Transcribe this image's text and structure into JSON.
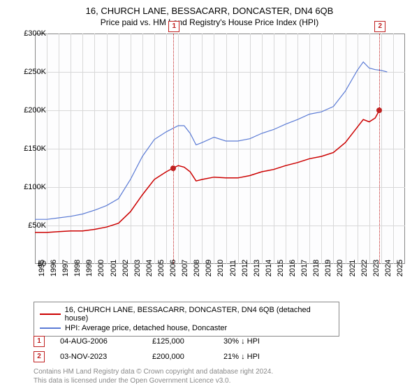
{
  "title": "16, CHURCH LANE, BESSACARR, DONCASTER, DN4 6QB",
  "subtitle": "Price paid vs. HM Land Registry's House Price Index (HPI)",
  "chart": {
    "type": "line",
    "background_color": "#fdfdfe",
    "grid_color": "#d8d8d8",
    "border_color": "#888888",
    "ylim": [
      0,
      300000
    ],
    "ytick_step": 50000,
    "yticks": [
      {
        "v": 0,
        "label": "£0"
      },
      {
        "v": 50000,
        "label": "£50K"
      },
      {
        "v": 100000,
        "label": "£100K"
      },
      {
        "v": 150000,
        "label": "£150K"
      },
      {
        "v": 200000,
        "label": "£200K"
      },
      {
        "v": 250000,
        "label": "£250K"
      },
      {
        "v": 300000,
        "label": "£300K"
      }
    ],
    "xlim": [
      1995,
      2026
    ],
    "xticks": [
      1995,
      1996,
      1997,
      1998,
      1999,
      2000,
      2001,
      2002,
      2003,
      2004,
      2005,
      2006,
      2007,
      2008,
      2009,
      2010,
      2011,
      2012,
      2013,
      2014,
      2015,
      2016,
      2017,
      2018,
      2019,
      2020,
      2021,
      2022,
      2023,
      2024,
      2025
    ],
    "series": [
      {
        "name": "16, CHURCH LANE, BESSACARR, DONCASTER, DN4 6QB (detached house)",
        "color": "#cc0000",
        "width": 1.5,
        "points": [
          [
            1995,
            41000
          ],
          [
            1996,
            41000
          ],
          [
            1997,
            42000
          ],
          [
            1998,
            43000
          ],
          [
            1999,
            43000
          ],
          [
            2000,
            45000
          ],
          [
            2001,
            48000
          ],
          [
            2002,
            53000
          ],
          [
            2003,
            68000
          ],
          [
            2004,
            90000
          ],
          [
            2005,
            110000
          ],
          [
            2006,
            120000
          ],
          [
            2006.6,
            125000
          ],
          [
            2007,
            128000
          ],
          [
            2007.5,
            126000
          ],
          [
            2008,
            120000
          ],
          [
            2008.5,
            108000
          ],
          [
            2009,
            110000
          ],
          [
            2010,
            113000
          ],
          [
            2011,
            112000
          ],
          [
            2012,
            112000
          ],
          [
            2013,
            115000
          ],
          [
            2014,
            120000
          ],
          [
            2015,
            123000
          ],
          [
            2016,
            128000
          ],
          [
            2017,
            132000
          ],
          [
            2018,
            137000
          ],
          [
            2019,
            140000
          ],
          [
            2020,
            145000
          ],
          [
            2021,
            158000
          ],
          [
            2022,
            178000
          ],
          [
            2022.5,
            188000
          ],
          [
            2023,
            185000
          ],
          [
            2023.5,
            190000
          ],
          [
            2023.85,
            200000
          ]
        ]
      },
      {
        "name": "HPI: Average price, detached house, Doncaster",
        "color": "#5b7bd5",
        "width": 1.2,
        "points": [
          [
            1995,
            58000
          ],
          [
            1996,
            58000
          ],
          [
            1997,
            60000
          ],
          [
            1998,
            62000
          ],
          [
            1999,
            65000
          ],
          [
            2000,
            70000
          ],
          [
            2001,
            76000
          ],
          [
            2002,
            85000
          ],
          [
            2003,
            110000
          ],
          [
            2004,
            140000
          ],
          [
            2005,
            162000
          ],
          [
            2006,
            172000
          ],
          [
            2007,
            180000
          ],
          [
            2007.5,
            180000
          ],
          [
            2008,
            170000
          ],
          [
            2008.5,
            155000
          ],
          [
            2009,
            158000
          ],
          [
            2010,
            165000
          ],
          [
            2011,
            160000
          ],
          [
            2012,
            160000
          ],
          [
            2013,
            163000
          ],
          [
            2014,
            170000
          ],
          [
            2015,
            175000
          ],
          [
            2016,
            182000
          ],
          [
            2017,
            188000
          ],
          [
            2018,
            195000
          ],
          [
            2019,
            198000
          ],
          [
            2020,
            205000
          ],
          [
            2021,
            225000
          ],
          [
            2022,
            252000
          ],
          [
            2022.5,
            263000
          ],
          [
            2023,
            255000
          ],
          [
            2023.5,
            253000
          ],
          [
            2024,
            252000
          ],
          [
            2024.5,
            250000
          ]
        ]
      }
    ],
    "markers": [
      {
        "num": "1",
        "x": 2006.6,
        "y": 125000,
        "date": "04-AUG-2006",
        "price": "£125,000",
        "pct": "30% ↓ HPI"
      },
      {
        "num": "2",
        "x": 2023.85,
        "y": 200000,
        "date": "03-NOV-2023",
        "price": "£200,000",
        "pct": "21% ↓ HPI"
      }
    ]
  },
  "legend": {
    "border_color": "#888888",
    "items": [
      {
        "color": "#cc0000",
        "label": "16, CHURCH LANE, BESSACARR, DONCASTER, DN4 6QB (detached house)"
      },
      {
        "color": "#5b7bd5",
        "label": "HPI: Average price, detached house, Doncaster"
      }
    ]
  },
  "footer_line1": "Contains HM Land Registry data © Crown copyright and database right 2024.",
  "footer_line2": "This data is licensed under the Open Government Licence v3.0."
}
